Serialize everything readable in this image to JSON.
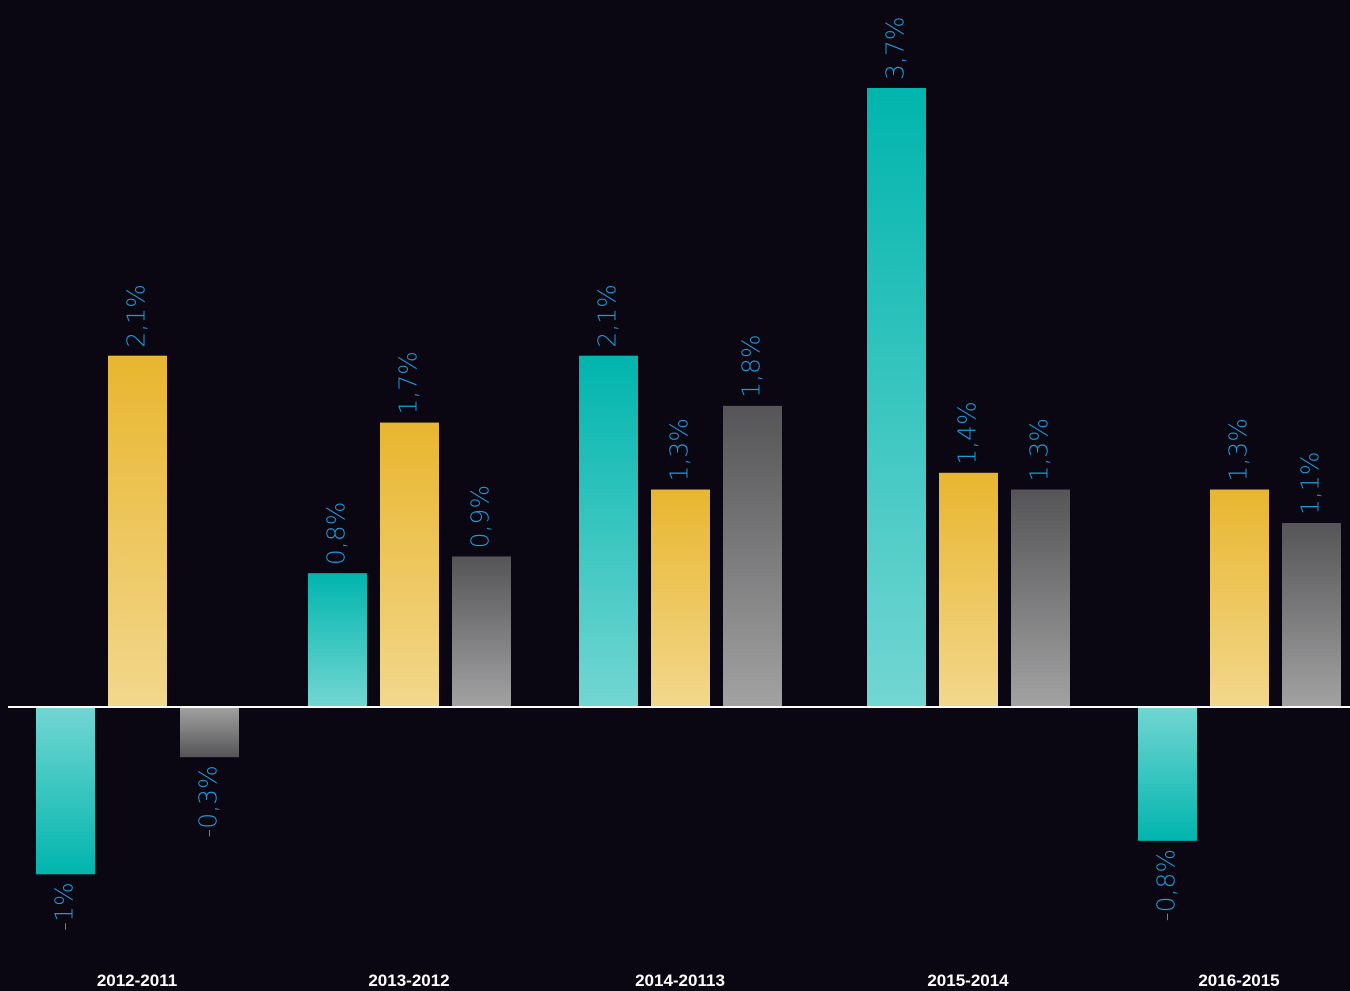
{
  "chart_data": {
    "type": "bar",
    "categories": [
      "2012-2011",
      "2013-2012",
      "2014-20113",
      "2015-2014",
      "2016-2015"
    ],
    "series": [
      {
        "color": "#00b5ad",
        "values": [
          -1,
          0.8,
          2.1,
          3.7,
          -0.8
        ],
        "value_labels": [
          "-1%",
          "0,8%",
          "2,1%",
          "3,7%",
          "-0,8%"
        ]
      },
      {
        "color": "#e8b62f",
        "values": [
          2.1,
          1.7,
          1.3,
          1.4,
          1.3
        ],
        "value_labels": [
          "2,1%",
          "1,7%",
          "1,3%",
          "1,4%",
          "1,3%"
        ]
      },
      {
        "color": "#555557",
        "values": [
          -0.3,
          0.9,
          1.8,
          1.3,
          1.1
        ],
        "value_labels": [
          "-0,3%",
          "0,9%",
          "1,8%",
          "1,3%",
          "1,1%"
        ]
      }
    ]
  }
}
